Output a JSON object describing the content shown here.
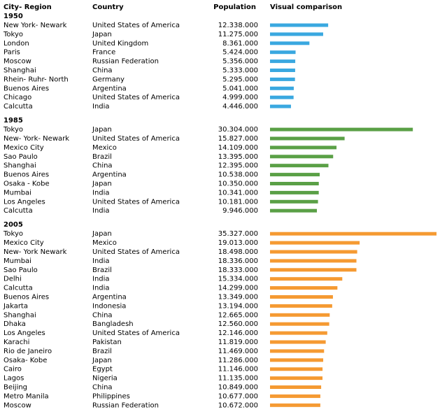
{
  "headers": [
    "City- Region",
    "Country",
    "Population",
    "Visual comparison"
  ],
  "groups": [
    {
      "year": "1950",
      "color": "#3aa8e0",
      "cities": [
        "New York- Newark",
        "Tokyo",
        "London",
        "Paris",
        "Moscow",
        "Shanghai",
        "Rhein- Ruhr- North",
        "Buenos Aires",
        "Chicago",
        "Calcutta"
      ],
      "countries": [
        "United States of America",
        "Japan",
        "United Kingdom",
        "France",
        "Russian Federation",
        "China",
        "Germany",
        "Argentina",
        "United States of America",
        "India"
      ],
      "values": [
        12338000,
        11275000,
        8361000,
        5424000,
        5356000,
        5333000,
        5295000,
        5041000,
        4999000,
        4446000
      ],
      "value_labels": [
        "12.338.000",
        "11.275.000",
        "8.361.000",
        "5.424.000",
        "5.356.000",
        "5.333.000",
        "5.295.000",
        "5.041.000",
        "4.999.000",
        "4.446.000"
      ]
    },
    {
      "year": "1985",
      "color": "#5aa046",
      "cities": [
        "Tokyo",
        "New- York- Newark",
        "Mexico City",
        "Sao Paulo",
        "Shanghai",
        "Buenos Aires",
        "Osaka - Kobe",
        "Mumbai",
        "Los Angeles",
        "Calcutta"
      ],
      "countries": [
        "Japan",
        "United States of America",
        "Mexico",
        "Brazil",
        "China",
        "Argentina",
        "Japan",
        "India",
        "United States of America",
        "India"
      ],
      "values": [
        30304000,
        15827000,
        14109000,
        13395000,
        12395000,
        10538000,
        10350000,
        10341000,
        10181000,
        9946000
      ],
      "value_labels": [
        "30.304.000",
        "15.827.000",
        "14.109.000",
        "13.395.000",
        "12.395.000",
        "10.538.000",
        "10.350.000",
        "10.341.000",
        "10.181.000",
        "9.946.000"
      ]
    },
    {
      "year": "2005",
      "color": "#f59a32",
      "cities": [
        "Tokyo",
        "Mexico City",
        "New- York Newark",
        "Mumbai",
        "Sao Paulo",
        "Delhi",
        "Calcutta",
        "Buenos Aires",
        "Jakarta",
        "Shanghai",
        "Dhaka",
        "Los Angeles",
        "Karachi",
        "Rio de Janeiro",
        "Osaka- Kobe",
        "Cairo",
        "Lagos",
        "Beijing",
        "Metro Manila",
        "Moscow"
      ],
      "countries": [
        "Japan",
        "Mexico",
        "United States of America",
        "India",
        "Brazil",
        "India",
        "India",
        "Argentina",
        "Indonesia",
        "China",
        "Bangladesh",
        "United States of America",
        "Pakistan",
        "Brazil",
        "Japan",
        "Egypt",
        "Nigeria",
        "China",
        "Philippines",
        "Russian Federation"
      ],
      "values": [
        35327000,
        19013000,
        18498000,
        18336000,
        18333000,
        15334000,
        14299000,
        13349000,
        13194000,
        12665000,
        12560000,
        12146000,
        11819000,
        11469000,
        11286000,
        11146000,
        11135000,
        10849000,
        10677000,
        10672000
      ],
      "value_labels": [
        "35.327.000",
        "19.013.000",
        "18.498.000",
        "18.336.000",
        "18.333.000",
        "15.334.000",
        "14.299.000",
        "13.349.000",
        "13.194.000",
        "12.665.000",
        "12.560.000",
        "12.146.000",
        "11.819.000",
        "11.469.000",
        "11.286.000",
        "11.146.000",
        "11.135.000",
        "10.849.000",
        "10.677.000",
        "10.672.000"
      ]
    }
  ]
}
